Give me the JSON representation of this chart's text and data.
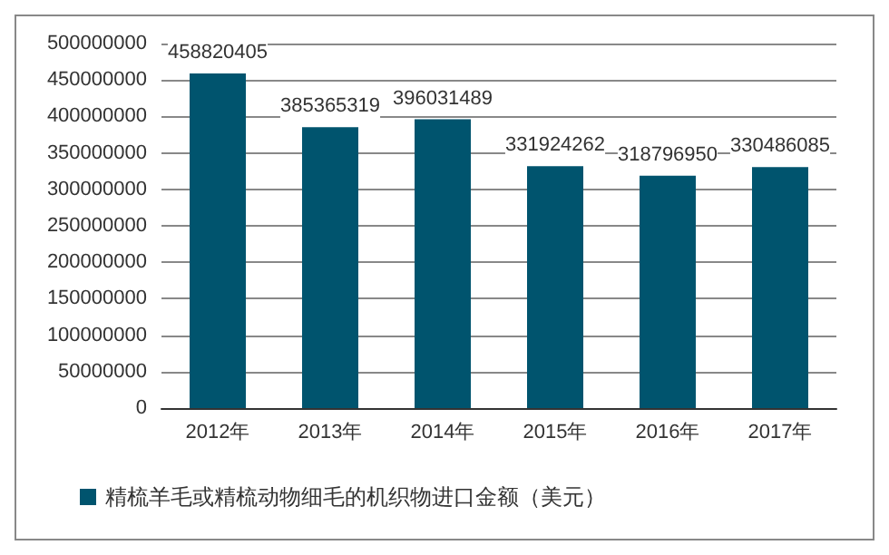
{
  "chart_data": {
    "type": "bar",
    "categories": [
      "2012年",
      "2013年",
      "2014年",
      "2015年",
      "2016年",
      "2017年"
    ],
    "series": [
      {
        "name": "精梳羊毛或精梳动物细毛的机织物进口金额（美元）",
        "color": "#00546e",
        "values": [
          458820405,
          385365319,
          396031489,
          331924262,
          318796950,
          330486085
        ]
      }
    ],
    "ylim": [
      0,
      500000000
    ],
    "yticks": [
      0,
      50000000,
      100000000,
      150000000,
      200000000,
      250000000,
      300000000,
      350000000,
      400000000,
      450000000,
      500000000
    ],
    "grid": "y",
    "legend": "bottom",
    "data_labels": true
  }
}
